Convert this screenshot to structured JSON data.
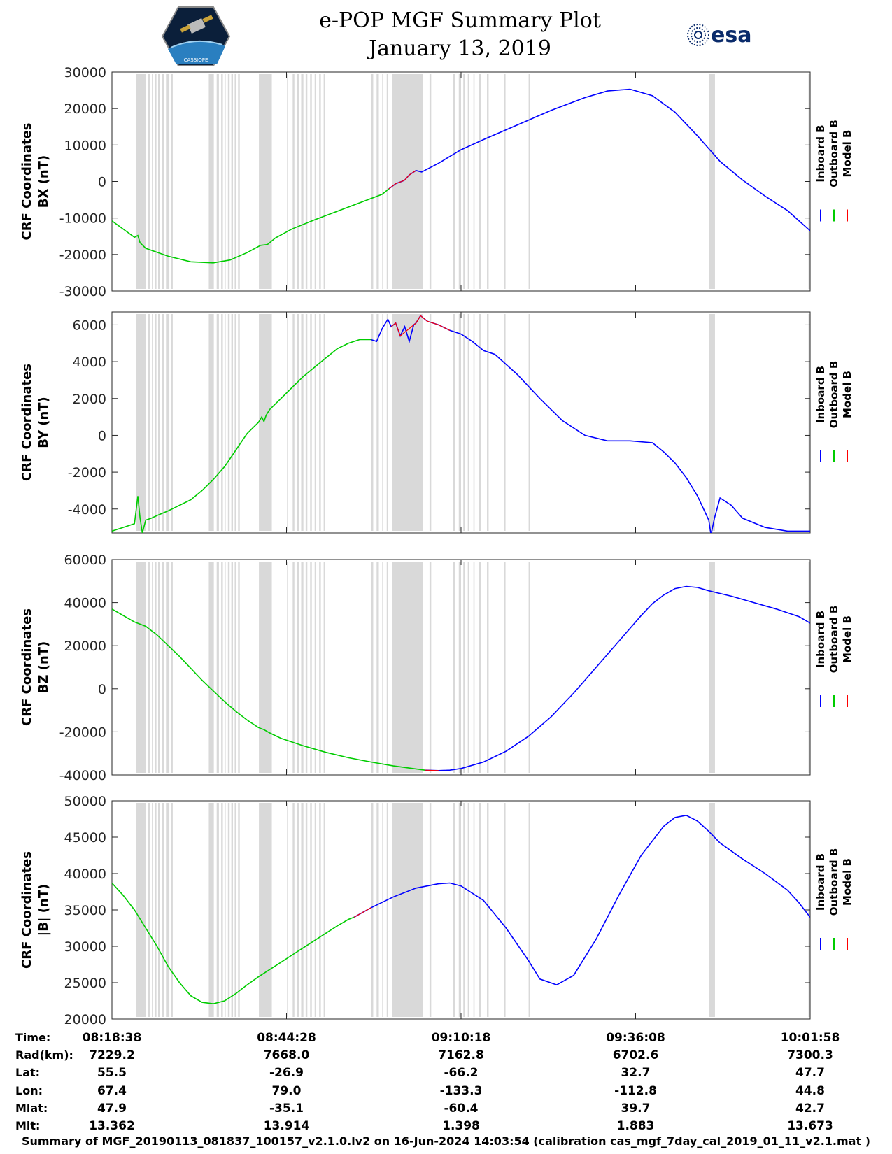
{
  "header": {
    "title": "e-POP MGF Summary Plot",
    "date": "January 13, 2019",
    "esa_logo_text": "esa",
    "mission_logo_text": "CASSIOPE"
  },
  "colors": {
    "inboard": "#0000ff",
    "outboard": "#00cc00",
    "model": "#ff0000",
    "gap_shading": "#d9d9d9"
  },
  "legend": {
    "inboard": "Inboard B",
    "outboard": "Outboard B",
    "model": "Model B"
  },
  "time_axis": {
    "range_seconds": [
      0,
      6200
    ],
    "tick_seconds": [
      0,
      1550,
      3100,
      4650,
      6200
    ]
  },
  "gap_intervals_seconds": [
    [
      215,
      300
    ],
    [
      320,
      340
    ],
    [
      355,
      365
    ],
    [
      380,
      395
    ],
    [
      410,
      425
    ],
    [
      445,
      460
    ],
    [
      480,
      510
    ],
    [
      525,
      540
    ],
    [
      860,
      905
    ],
    [
      930,
      950
    ],
    [
      970,
      985
    ],
    [
      1000,
      1010
    ],
    [
      1030,
      1045
    ],
    [
      1060,
      1075
    ],
    [
      1090,
      1100
    ],
    [
      1120,
      1135
    ],
    [
      1305,
      1420
    ],
    [
      1555,
      1565
    ],
    [
      1605,
      1620
    ],
    [
      1645,
      1660
    ],
    [
      1680,
      1700
    ],
    [
      1720,
      1735
    ],
    [
      1760,
      1775
    ],
    [
      1800,
      1810
    ],
    [
      1840,
      1855
    ],
    [
      1880,
      1890
    ],
    [
      2300,
      2320
    ],
    [
      2350,
      2370
    ],
    [
      2400,
      2410
    ],
    [
      2440,
      2450
    ],
    [
      2490,
      2760
    ],
    [
      2820,
      2835
    ],
    [
      3030,
      3050
    ],
    [
      3080,
      3100
    ],
    [
      3120,
      3135
    ],
    [
      3160,
      3170
    ],
    [
      3210,
      3220
    ],
    [
      3260,
      3275
    ],
    [
      3330,
      3345
    ],
    [
      3480,
      3495
    ],
    [
      3700,
      3710
    ],
    [
      5300,
      5355
    ],
    [
      6185,
      6200
    ]
  ],
  "chart_data": [
    {
      "type": "line",
      "title": "",
      "xlabel": "",
      "ylabel": "CRF Coordinates BX (nT)",
      "ylabel_lines": [
        "CRF Coordinates",
        "BX (nT)"
      ],
      "ylim": [
        -30000,
        30000
      ],
      "yticks": [
        -30000,
        -20000,
        -10000,
        0,
        10000,
        20000,
        30000
      ],
      "series": [
        {
          "name": "Outboard B",
          "x": [
            0,
            120,
            200,
            230,
            250,
            300,
            500,
            700,
            900,
            1050,
            1200,
            1320,
            1380,
            1450,
            1600,
            1800,
            2100,
            2400,
            2460
          ],
          "y": [
            -10800,
            -13500,
            -15300,
            -14800,
            -16800,
            -18300,
            -20500,
            -22000,
            -22300,
            -21500,
            -19500,
            -17500,
            -17300,
            -15500,
            -13000,
            -10500,
            -7000,
            -3500,
            -2000
          ]
        },
        {
          "name": "Inboard B",
          "x": [
            2460,
            2520,
            2580,
            2600,
            2640,
            2700,
            2750,
            2900,
            3100,
            3300,
            3600,
            3900,
            4200,
            4400,
            4600,
            4800,
            5000,
            5200,
            5400,
            5600,
            5800,
            6000,
            6200
          ],
          "y": [
            -2000,
            -600,
            100,
            400,
            1800,
            3000,
            2600,
            5000,
            8700,
            11500,
            15500,
            19500,
            23000,
            24800,
            25300,
            23500,
            19000,
            12500,
            5500,
            400,
            -4000,
            -8000,
            -13500
          ]
        },
        {
          "name": "Model B",
          "x": [
            2460,
            2520,
            2580,
            2600,
            2640,
            2700
          ],
          "y": [
            -2000,
            -600,
            100,
            400,
            1800,
            3000
          ]
        }
      ]
    },
    {
      "type": "line",
      "title": "",
      "xlabel": "",
      "ylabel": "CRF Coordinates BY (nT)",
      "ylabel_lines": [
        "CRF Coordinates",
        "BY (nT)"
      ],
      "ylim": [
        -5300,
        6700
      ],
      "yticks": [
        -4000,
        -2000,
        0,
        2000,
        4000,
        6000
      ],
      "series": [
        {
          "name": "Outboard B",
          "x": [
            0,
            100,
            200,
            230,
            250,
            270,
            300,
            350,
            420,
            500,
            600,
            700,
            800,
            900,
            1000,
            1100,
            1200,
            1300,
            1330,
            1350,
            1370,
            1400,
            1500,
            1600,
            1700,
            1800,
            1900,
            2000,
            2100,
            2200,
            2300
          ],
          "y": [
            -5200,
            -5000,
            -4800,
            -3300,
            -4500,
            -5300,
            -4600,
            -4500,
            -4300,
            -4100,
            -3800,
            -3500,
            -3000,
            -2400,
            -1700,
            -800,
            100,
            700,
            1000,
            750,
            1100,
            1400,
            2000,
            2600,
            3200,
            3700,
            4200,
            4700,
            5000,
            5200,
            5200
          ]
        },
        {
          "name": "Inboard B",
          "x": [
            2300,
            2350,
            2400,
            2450,
            2480,
            2520,
            2560,
            2600,
            2640,
            2680,
            2700,
            2740,
            2800,
            2900,
            3000,
            3100,
            3200,
            3300,
            3400,
            3600,
            3800,
            4000,
            4200,
            4400,
            4600,
            4800,
            4900,
            5000,
            5100,
            5200,
            5300,
            5320,
            5350,
            5400,
            5500,
            5600,
            5800,
            6000,
            6200
          ],
          "y": [
            5200,
            5100,
            5800,
            6300,
            5900,
            6100,
            5400,
            5900,
            5100,
            6000,
            6100,
            6500,
            6200,
            6000,
            5700,
            5500,
            5100,
            4600,
            4400,
            3300,
            2000,
            800,
            0,
            -300,
            -300,
            -400,
            -900,
            -1500,
            -2300,
            -3300,
            -4600,
            -5400,
            -4500,
            -3400,
            -3800,
            -4500,
            -5000,
            -5200,
            -5200
          ]
        },
        {
          "name": "Model B",
          "x": [
            2480,
            2520,
            2560,
            2700,
            2740,
            2800,
            2900,
            3000
          ],
          "y": [
            5900,
            6100,
            5400,
            6100,
            6500,
            6200,
            6000,
            5700
          ]
        }
      ]
    },
    {
      "type": "line",
      "title": "",
      "xlabel": "",
      "ylabel": "CRF Coordinates BZ (nT)",
      "ylabel_lines": [
        "CRF Coordinates",
        "BZ (nT)"
      ],
      "ylim": [
        -40000,
        60000
      ],
      "yticks": [
        -40000,
        -20000,
        0,
        20000,
        40000,
        60000
      ],
      "series": [
        {
          "name": "Outboard B",
          "x": [
            0,
            100,
            200,
            300,
            400,
            500,
            600,
            700,
            800,
            900,
            1000,
            1100,
            1200,
            1300,
            1350,
            1400,
            1500,
            1700,
            1900,
            2100,
            2300,
            2500,
            2700,
            2780
          ],
          "y": [
            37000,
            34000,
            31000,
            29000,
            25000,
            20000,
            15000,
            9500,
            4000,
            -1000,
            -6000,
            -10500,
            -14500,
            -18000,
            -19000,
            -20500,
            -23000,
            -26500,
            -29500,
            -32000,
            -34000,
            -35800,
            -37200,
            -37800
          ]
        },
        {
          "name": "Inboard B",
          "x": [
            2780,
            2900,
            3000,
            3100,
            3300,
            3500,
            3700,
            3900,
            4100,
            4300,
            4500,
            4700,
            4800,
            4900,
            5000,
            5100,
            5200,
            5300,
            5500,
            5700,
            5900,
            6100,
            6200
          ],
          "y": [
            -37800,
            -38000,
            -37800,
            -37000,
            -34000,
            -29000,
            -22000,
            -13000,
            -2000,
            10000,
            22000,
            34000,
            39500,
            43500,
            46500,
            47500,
            47000,
            45500,
            43000,
            40000,
            37000,
            33500,
            30500
          ]
        },
        {
          "name": "Model B",
          "x": [
            2780,
            2900
          ],
          "y": [
            -37800,
            -38000
          ]
        }
      ]
    },
    {
      "type": "line",
      "title": "",
      "xlabel": "",
      "ylabel": "CRF Coordinates |B| (nT)",
      "ylabel_lines": [
        "CRF Coordinates",
        "|B| (nT)"
      ],
      "ylim": [
        20000,
        50000
      ],
      "yticks": [
        20000,
        25000,
        30000,
        35000,
        40000,
        45000,
        50000
      ],
      "series": [
        {
          "name": "Outboard B",
          "x": [
            0,
            100,
            200,
            300,
            400,
            500,
            600,
            700,
            800,
            900,
            1000,
            1100,
            1200,
            1300,
            1400,
            1500,
            1600,
            1700,
            1800,
            1900,
            2000,
            2100,
            2150
          ],
          "y": [
            38700,
            37000,
            35000,
            32500,
            30000,
            27200,
            25000,
            23200,
            22300,
            22100,
            22500,
            23500,
            24700,
            25800,
            26800,
            27800,
            28800,
            29800,
            30800,
            31800,
            32800,
            33700,
            34000
          ]
        },
        {
          "name": "Inboard B",
          "x": [
            2150,
            2300,
            2500,
            2700,
            2900,
            3000,
            3100,
            3300,
            3500,
            3700,
            3800,
            3950,
            4100,
            4300,
            4500,
            4700,
            4900,
            5000,
            5100,
            5200,
            5300,
            5400,
            5600,
            5800,
            6000,
            6100,
            6200
          ],
          "y": [
            34000,
            35300,
            36800,
            38000,
            38600,
            38700,
            38300,
            36300,
            32500,
            28000,
            25500,
            24700,
            26000,
            31000,
            37000,
            42500,
            46500,
            47700,
            48000,
            47200,
            45800,
            44200,
            42000,
            40000,
            37700,
            36000,
            34000
          ]
        },
        {
          "name": "Model B",
          "x": [
            2150,
            2300
          ],
          "y": [
            34000,
            35300
          ]
        }
      ]
    }
  ],
  "info_table": {
    "labels": [
      "Time:",
      "Rad(km):",
      "Lat:",
      "Lon:",
      "Mlat:",
      "Mlt:"
    ],
    "columns": [
      [
        "08:18:38",
        "7229.2",
        "55.5",
        "67.4",
        "47.9",
        "13.362"
      ],
      [
        "08:44:28",
        "7668.0",
        "-26.9",
        "79.0",
        "-35.1",
        "13.914"
      ],
      [
        "09:10:18",
        "7162.8",
        "-66.2",
        "-133.3",
        "-60.4",
        "1.398"
      ],
      [
        "09:36:08",
        "6702.6",
        "32.7",
        "-112.8",
        "39.7",
        "1.883"
      ],
      [
        "10:01:58",
        "7300.3",
        "47.7",
        "44.8",
        "42.7",
        "13.673"
      ]
    ]
  },
  "footer": "Summary of MGF_20190113_081837_100157_v2.1.0.lv2 on 16-Jun-2024 14:03:54 (calibration cas_mgf_7day_cal_2019_01_11_v2.1.mat )"
}
